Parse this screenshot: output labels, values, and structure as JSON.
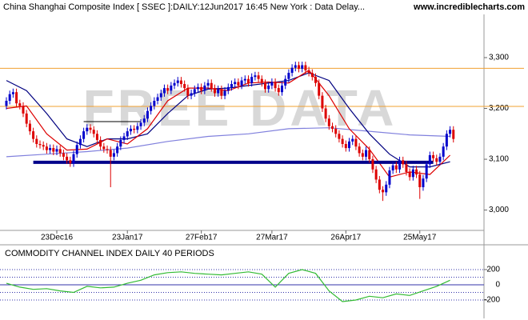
{
  "chart_data": [
    {
      "type": "candlestick",
      "title": "China Shanghai Composite Index [ SSEC ]:DAILY:12Jun2017 16:45 New York : Data Delay...",
      "source": "www.incrediblecharts.com",
      "watermark": "FREE DATA",
      "up_color": "#0000cc",
      "down_color": "#dd0000",
      "xlim": [
        -1.9,
        142.1
      ],
      "xticks": [
        {
          "value": 15,
          "label": "23Dec16"
        },
        {
          "value": 36,
          "label": "23Jan17"
        },
        {
          "value": 58,
          "label": "27Feb17"
        },
        {
          "value": 79,
          "label": "27Mar17"
        },
        {
          "value": 101,
          "label": "26Apr17"
        },
        {
          "value": 123,
          "label": "25May17"
        }
      ],
      "ylim": [
        2960,
        3385
      ],
      "yticks": [
        {
          "value": 3000,
          "label": "3,000"
        },
        {
          "value": 3100,
          "label": "3,100"
        },
        {
          "value": 3200,
          "label": "3,200"
        },
        {
          "value": 3300,
          "label": "3,300"
        }
      ],
      "open": [
        3205,
        3215,
        3228,
        3232,
        3210,
        3205,
        3190,
        3170,
        3155,
        3140,
        3130,
        3128,
        3125,
        3118,
        3122,
        3115,
        3120,
        3112,
        3105,
        3098,
        3092,
        3110,
        3128,
        3140,
        3155,
        3162,
        3158,
        3150,
        3138,
        3125,
        3120,
        3118,
        3105,
        3112,
        3125,
        3138,
        3145,
        3155,
        3160,
        3158,
        3165,
        3172,
        3180,
        3195,
        3205,
        3215,
        3222,
        3230,
        3240,
        3235,
        3245,
        3250,
        3255,
        3248,
        3240,
        3225,
        3230,
        3238,
        3242,
        3235,
        3245,
        3250,
        3240,
        3230,
        3238,
        3225,
        3235,
        3242,
        3248,
        3252,
        3245,
        3255,
        3258,
        3250,
        3262,
        3265,
        3258,
        3250,
        3238,
        3245,
        3252,
        3240,
        3232,
        3245,
        3258,
        3270,
        3280,
        3285,
        3278,
        3285,
        3275,
        3270,
        3262,
        3250,
        3225,
        3200,
        3180,
        3165,
        3160,
        3150,
        3140,
        3130,
        3122,
        3135,
        3140,
        3125,
        3112,
        3105,
        3118,
        3100,
        3080,
        3060,
        3040,
        3035,
        3050,
        3078,
        3088,
        3080,
        3098,
        3090,
        3075,
        3065,
        3080,
        3070,
        3045,
        3062,
        3090,
        3108,
        3102,
        3095,
        3105,
        3125,
        3150,
        3158
      ],
      "high": [
        3222,
        3235,
        3239,
        3239,
        3217,
        3212,
        3197,
        3177,
        3162,
        3147,
        3137,
        3135,
        3132,
        3129,
        3129,
        3127,
        3127,
        3119,
        3112,
        3105,
        3117,
        3135,
        3147,
        3162,
        3169,
        3169,
        3165,
        3157,
        3145,
        3132,
        3127,
        3125,
        3119,
        3132,
        3145,
        3152,
        3162,
        3167,
        3167,
        3172,
        3179,
        3187,
        3202,
        3212,
        3222,
        3229,
        3237,
        3247,
        3247,
        3252,
        3257,
        3262,
        3262,
        3255,
        3247,
        3237,
        3245,
        3249,
        3249,
        3252,
        3257,
        3257,
        3247,
        3245,
        3245,
        3242,
        3249,
        3255,
        3259,
        3259,
        3262,
        3265,
        3265,
        3269,
        3272,
        3272,
        3265,
        3257,
        3252,
        3259,
        3259,
        3247,
        3252,
        3265,
        3277,
        3287,
        3292,
        3292,
        3292,
        3292,
        3282,
        3277,
        3269,
        3257,
        3232,
        3207,
        3187,
        3172,
        3167,
        3157,
        3147,
        3137,
        3142,
        3147,
        3147,
        3132,
        3119,
        3125,
        3125,
        3107,
        3087,
        3067,
        3047,
        3057,
        3085,
        3095,
        3095,
        3105,
        3105,
        3097,
        3082,
        3087,
        3087,
        3077,
        3069,
        3097,
        3115,
        3115,
        3109,
        3112,
        3132,
        3157,
        3165,
        3165
      ],
      "low": [
        3198,
        3208,
        3221,
        3203,
        3198,
        3183,
        3163,
        3148,
        3133,
        3123,
        3121,
        3118,
        3111,
        3111,
        3108,
        3108,
        3105,
        3098,
        3091,
        3085,
        3085,
        3103,
        3121,
        3133,
        3148,
        3151,
        3143,
        3131,
        3118,
        3113,
        3111,
        3045,
        3098,
        3105,
        3118,
        3131,
        3138,
        3148,
        3151,
        3151,
        3158,
        3165,
        3173,
        3188,
        3198,
        3208,
        3215,
        3223,
        3228,
        3228,
        3238,
        3243,
        3241,
        3233,
        3218,
        3218,
        3223,
        3231,
        3228,
        3228,
        3238,
        3233,
        3223,
        3223,
        3218,
        3218,
        3228,
        3235,
        3241,
        3238,
        3238,
        3248,
        3243,
        3243,
        3255,
        3251,
        3243,
        3231,
        3231,
        3238,
        3233,
        3225,
        3225,
        3238,
        3251,
        3263,
        3273,
        3271,
        3271,
        3268,
        3263,
        3255,
        3243,
        3218,
        3193,
        3173,
        3158,
        3153,
        3143,
        3133,
        3123,
        3115,
        3115,
        3128,
        3118,
        3105,
        3098,
        3098,
        3093,
        3073,
        3053,
        3033,
        3018,
        3028,
        3043,
        3071,
        3073,
        3073,
        3083,
        3068,
        3058,
        3058,
        3063,
        3022,
        3038,
        3055,
        3083,
        3095,
        3088,
        3088,
        3098,
        3118,
        3143,
        3133
      ],
      "close": [
        3215,
        3228,
        3232,
        3210,
        3205,
        3190,
        3170,
        3155,
        3140,
        3130,
        3128,
        3125,
        3118,
        3122,
        3115,
        3120,
        3112,
        3105,
        3098,
        3092,
        3110,
        3128,
        3140,
        3155,
        3162,
        3158,
        3150,
        3138,
        3125,
        3120,
        3118,
        3105,
        3112,
        3125,
        3138,
        3145,
        3155,
        3160,
        3158,
        3165,
        3172,
        3180,
        3195,
        3205,
        3215,
        3222,
        3230,
        3240,
        3235,
        3245,
        3250,
        3255,
        3248,
        3240,
        3225,
        3230,
        3238,
        3242,
        3235,
        3245,
        3250,
        3240,
        3230,
        3238,
        3225,
        3235,
        3242,
        3248,
        3252,
        3245,
        3255,
        3258,
        3250,
        3262,
        3265,
        3258,
        3250,
        3238,
        3245,
        3252,
        3240,
        3232,
        3245,
        3258,
        3270,
        3280,
        3285,
        3278,
        3285,
        3275,
        3270,
        3262,
        3250,
        3225,
        3200,
        3180,
        3165,
        3160,
        3150,
        3140,
        3130,
        3122,
        3135,
        3140,
        3125,
        3112,
        3105,
        3118,
        3100,
        3080,
        3060,
        3040,
        3035,
        3050,
        3078,
        3088,
        3080,
        3098,
        3090,
        3075,
        3065,
        3080,
        3070,
        3045,
        3062,
        3090,
        3108,
        3102,
        3095,
        3105,
        3125,
        3150,
        3158,
        3140
      ],
      "series": [
        {
          "color": "#8080dd",
          "x": [
            0,
            12,
            24,
            36,
            48,
            60,
            72,
            84,
            96,
            108,
            120,
            132
          ],
          "values": [
            3105,
            3110,
            3115,
            3122,
            3135,
            3145,
            3150,
            3160,
            3162,
            3155,
            3148,
            3145
          ]
        },
        {
          "color": "#000080",
          "x": [
            0,
            6,
            12,
            18,
            24,
            30,
            36,
            42,
            48,
            54,
            60,
            66,
            72,
            78,
            84,
            90,
            96,
            102,
            108,
            114,
            120,
            126,
            132
          ],
          "values": [
            3255,
            3235,
            3190,
            3140,
            3125,
            3140,
            3140,
            3150,
            3190,
            3225,
            3238,
            3240,
            3245,
            3250,
            3255,
            3270,
            3255,
            3200,
            3150,
            3110,
            3085,
            3085,
            3095
          ]
        },
        {
          "color": "#dd0000",
          "x": [
            0,
            6,
            12,
            18,
            24,
            30,
            36,
            42,
            48,
            54,
            60,
            66,
            72,
            78,
            84,
            90,
            96,
            102,
            108,
            114,
            120,
            126,
            132
          ],
          "values": [
            3200,
            3205,
            3150,
            3118,
            3120,
            3140,
            3130,
            3160,
            3215,
            3240,
            3240,
            3235,
            3250,
            3252,
            3250,
            3275,
            3225,
            3160,
            3120,
            3065,
            3075,
            3070,
            3108
          ]
        }
      ],
      "hlines": [
        {
          "value": 3279,
          "color": "#f0a030"
        },
        {
          "value": 3204,
          "color": "#f0a030"
        }
      ],
      "segments": [
        {
          "x": [
            8,
            127
          ],
          "values": [
            3094,
            3094
          ],
          "color": "#00008b",
          "width": 4
        },
        {
          "x": [
            23,
            40
          ],
          "values": [
            3174,
            3174
          ],
          "color": "#000000",
          "width": 1
        }
      ]
    },
    {
      "type": "line",
      "title": "COMMODITY CHANNEL INDEX DAILY 40 PERIODS",
      "color": "#33bb33",
      "xlim": [
        -1.9,
        142.1
      ],
      "ylim": [
        -420,
        315
      ],
      "yticks": [
        -200,
        0,
        200
      ],
      "levels": [
        -200,
        -100,
        100,
        200
      ],
      "x": [
        0,
        4,
        8,
        12,
        16,
        20,
        24,
        28,
        32,
        36,
        40,
        44,
        48,
        52,
        56,
        60,
        64,
        68,
        72,
        76,
        80,
        84,
        88,
        92,
        96,
        100,
        104,
        108,
        112,
        116,
        120,
        124,
        128,
        132
      ],
      "values": [
        20,
        -30,
        -60,
        -50,
        -80,
        -100,
        -20,
        -40,
        -30,
        20,
        60,
        130,
        160,
        170,
        150,
        140,
        130,
        150,
        170,
        140,
        -30,
        150,
        200,
        150,
        -80,
        -220,
        -200,
        -150,
        -170,
        -120,
        -140,
        -80,
        -20,
        60
      ]
    }
  ]
}
